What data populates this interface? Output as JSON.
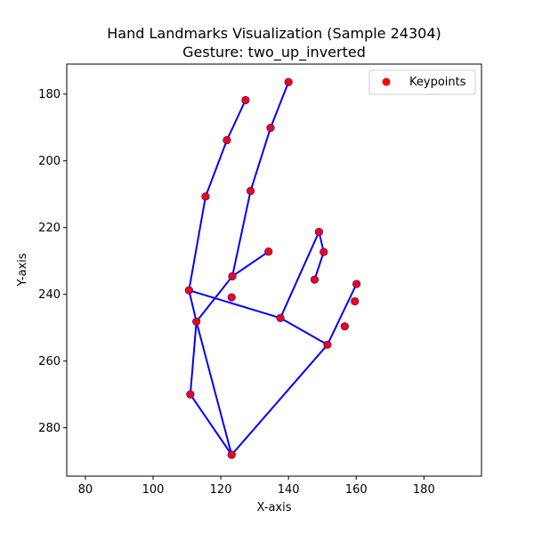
{
  "chart_data": {
    "type": "scatter",
    "title": "Hand Landmarks Visualization (Sample 24304)",
    "subtitle": "Gesture: two_up_inverted",
    "xlabel": "X-axis",
    "ylabel": "Y-axis",
    "xlim": [
      74.5,
      197
    ],
    "ylim": [
      294.5,
      171
    ],
    "y_inverted": true,
    "xticks": [
      80,
      100,
      120,
      140,
      160,
      180
    ],
    "yticks": [
      180,
      200,
      220,
      240,
      260,
      280
    ],
    "grid": false,
    "legend": {
      "placement": "top-right",
      "entries": [
        "Keypoints"
      ]
    },
    "colors": {
      "points": "#ff0000",
      "connections": "#0000ff",
      "point_edge": "#0000ff"
    },
    "points": [
      {
        "x": 123.2,
        "y": 288.1
      },
      {
        "x": 111.0,
        "y": 270.0
      },
      {
        "x": 112.8,
        "y": 248.2
      },
      {
        "x": 110.6,
        "y": 238.8
      },
      {
        "x": 115.5,
        "y": 210.7
      },
      {
        "x": 121.8,
        "y": 193.8
      },
      {
        "x": 127.3,
        "y": 181.8
      },
      {
        "x": 123.4,
        "y": 234.6
      },
      {
        "x": 128.8,
        "y": 209.0
      },
      {
        "x": 134.7,
        "y": 190.1
      },
      {
        "x": 140.0,
        "y": 176.4
      },
      {
        "x": 134.1,
        "y": 227.2
      },
      {
        "x": 123.2,
        "y": 240.9
      },
      {
        "x": 137.6,
        "y": 247.1
      },
      {
        "x": 149.0,
        "y": 221.3
      },
      {
        "x": 150.4,
        "y": 227.3
      },
      {
        "x": 147.7,
        "y": 235.6
      },
      {
        "x": 151.5,
        "y": 255.1
      },
      {
        "x": 160.1,
        "y": 236.9
      },
      {
        "x": 159.6,
        "y": 242.1
      },
      {
        "x": 156.6,
        "y": 249.6
      }
    ],
    "connections": [
      [
        0,
        1
      ],
      [
        1,
        2
      ],
      [
        2,
        7
      ],
      [
        7,
        11
      ],
      [
        0,
        2
      ],
      [
        2,
        3
      ],
      [
        3,
        4
      ],
      [
        4,
        5
      ],
      [
        5,
        6
      ],
      [
        7,
        8
      ],
      [
        8,
        9
      ],
      [
        9,
        10
      ],
      [
        3,
        13
      ],
      [
        13,
        14
      ],
      [
        14,
        15
      ],
      [
        15,
        16
      ],
      [
        13,
        17
      ],
      [
        17,
        18
      ],
      [
        0,
        17
      ]
    ]
  }
}
